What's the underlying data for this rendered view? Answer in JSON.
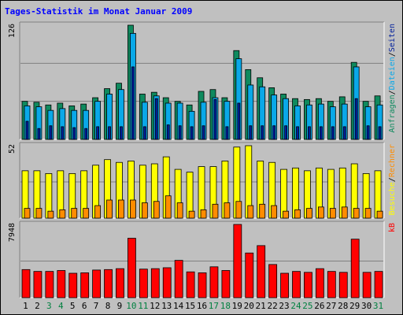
{
  "chart_data": {
    "type": "bar",
    "title": "Tages-Statistik im Monat Januar 2009",
    "categories": [
      "1",
      "2",
      "3",
      "4",
      "5",
      "6",
      "7",
      "8",
      "9",
      "10",
      "11",
      "12",
      "13",
      "14",
      "15",
      "16",
      "17",
      "18",
      "19",
      "20",
      "21",
      "22",
      "23",
      "24",
      "25",
      "26",
      "27",
      "28",
      "29",
      "30",
      "31"
    ],
    "weekend_days": [
      "3",
      "4",
      "10",
      "11",
      "17",
      "18",
      "24",
      "25",
      "31"
    ],
    "panels": [
      {
        "name": "top",
        "max_label": "126",
        "ylim": [
          0,
          126
        ],
        "right_labels": [
          "Anfragen",
          "/",
          "Dateien",
          "/",
          "Seiten"
        ],
        "series": [
          {
            "name": "Anfragen",
            "color": "#0f8a5e",
            "values": [
              42,
              41,
              38,
              40,
              37,
              39,
              46,
              56,
              62,
              126,
              50,
              52,
              46,
              42,
              38,
              53,
              55,
              46,
              98,
              77,
              68,
              57,
              50,
              45,
              44,
              45,
              42,
              47,
              85,
              42,
              48
            ]
          },
          {
            "name": "Dateien",
            "color": "#0aa8e8",
            "values": [
              37,
              36,
              32,
              34,
              32,
              32,
              42,
              50,
              55,
              117,
              41,
              48,
              40,
              40,
              31,
              41,
              46,
              42,
              89,
              60,
              58,
              49,
              45,
              37,
              38,
              39,
              36,
              39,
              80,
              36,
              38
            ]
          },
          {
            "name": "Seiten",
            "color": "#001f9c",
            "values": [
              20,
              12,
              15,
              14,
              13,
              12,
              14,
              14,
              14,
              80,
              14,
              45,
              16,
              15,
              14,
              15,
              44,
              14,
              40,
              15,
              15,
              15,
              15,
              14,
              14,
              14,
              14,
              14,
              45,
              15,
              14
            ]
          }
        ]
      },
      {
        "name": "middle",
        "max_label": "52",
        "ylim": [
          0,
          52
        ],
        "right_labels": [
          "Besuche",
          "/",
          "Rechner"
        ],
        "series": [
          {
            "name": "Besuche",
            "color": "#ffff00",
            "values": [
              34,
              34,
              32,
              34,
              32,
              34,
              38,
              42,
              40,
              41,
              38,
              39,
              44,
              35,
              33,
              37,
              37,
              41,
              51,
              52,
              41,
              40,
              35,
              36,
              34,
              36,
              35,
              36,
              39,
              32,
              34
            ]
          },
          {
            "name": "Rechner",
            "color": "#ff8c00",
            "values": [
              7,
              7,
              5,
              6,
              7,
              7,
              9,
              13,
              13,
              13,
              11,
              12,
              16,
              11,
              5,
              6,
              10,
              11,
              12,
              9,
              10,
              9,
              5,
              6,
              7,
              8,
              7,
              8,
              7,
              7,
              5
            ]
          }
        ]
      },
      {
        "name": "bottom",
        "max_label": "7948",
        "ylim": [
          0,
          7948
        ],
        "right_labels": [
          "kB"
        ],
        "series": [
          {
            "name": "kB",
            "color": "#ff0000",
            "values": [
              3050,
              2850,
              2850,
              2950,
              2650,
              2700,
              3000,
              3050,
              3150,
              6450,
              3100,
              3150,
              3250,
              4050,
              2800,
              2700,
              3350,
              2950,
              7948,
              4850,
              5650,
              3600,
              2650,
              2850,
              2750,
              3150,
              2850,
              2750,
              6350,
              2750,
              2850
            ]
          }
        ]
      }
    ],
    "colors": {
      "background": "#c0c0c0",
      "frame_bg": "#ffffff",
      "title": "#0000ff",
      "weekday_label": "#000000",
      "weekend_label": "#008040",
      "gridline": "#808080"
    }
  }
}
